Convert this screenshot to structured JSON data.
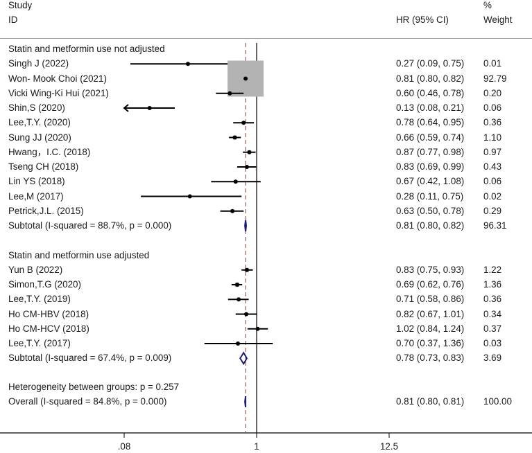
{
  "header": {
    "study_label_line1": "Study",
    "study_label_line2": "ID",
    "hr_label": "HR (95% CI)",
    "weight_label_line1": "%",
    "weight_label_line2": "Weight"
  },
  "colors": {
    "text": "#1a1a1a",
    "ci_line": "#000000",
    "weight_box": "#b3b3b3",
    "diamond": "#1c1c78",
    "null_line": "#000000",
    "overall_dashed_line": "#8b3a3a",
    "header_rule": "#a0a0a0"
  },
  "chart_data": {
    "type": "forest",
    "title": "",
    "xlabel": "",
    "scale": "log",
    "x_ticks": [
      0.08,
      1,
      12.5
    ],
    "x_tick_labels": [
      ".08",
      "1",
      "12.5"
    ],
    "null_value": 1,
    "overall_line_value": 0.81,
    "columns": [
      "Study ID",
      "HR (95% CI)",
      "% Weight"
    ],
    "groups": [
      {
        "name": "Statin and metformin use not adjusted",
        "studies": [
          {
            "study": "Singh J (2022)",
            "hr": 0.27,
            "lo": 0.09,
            "hi": 0.75,
            "ci_text": "0.27 (0.09, 0.75)",
            "weight": "0.01"
          },
          {
            "study": "Won- Mook Choi (2021)",
            "hr": 0.81,
            "lo": 0.8,
            "hi": 0.82,
            "ci_text": "0.81 (0.80, 0.82)",
            "weight": "92.79"
          },
          {
            "study": "Vicki Wing-Ki Hui (2021)",
            "hr": 0.6,
            "lo": 0.46,
            "hi": 0.78,
            "ci_text": "0.60 (0.46, 0.78)",
            "weight": "0.20"
          },
          {
            "study": "Shin,S (2020)",
            "hr": 0.13,
            "lo": 0.08,
            "hi": 0.21,
            "ci_text": "0.13 (0.08, 0.21)",
            "weight": "0.06",
            "arrow_left": true
          },
          {
            "study": "Lee,T.Y. (2020)",
            "hr": 0.78,
            "lo": 0.64,
            "hi": 0.95,
            "ci_text": "0.78 (0.64, 0.95)",
            "weight": "0.36"
          },
          {
            "study": "Sung JJ (2020)",
            "hr": 0.66,
            "lo": 0.59,
            "hi": 0.74,
            "ci_text": "0.66 (0.59, 0.74)",
            "weight": "1.10"
          },
          {
            "study": "Hwang，I.C. (2018)",
            "hr": 0.87,
            "lo": 0.77,
            "hi": 0.98,
            "ci_text": "0.87 (0.77, 0.98)",
            "weight": "0.97"
          },
          {
            "study": "Tseng CH (2018)",
            "hr": 0.83,
            "lo": 0.69,
            "hi": 0.99,
            "ci_text": "0.83 (0.69, 0.99)",
            "weight": "0.43"
          },
          {
            "study": "Lin YS (2018)",
            "hr": 0.67,
            "lo": 0.42,
            "hi": 1.08,
            "ci_text": "0.67 (0.42, 1.08)",
            "weight": "0.06"
          },
          {
            "study": "Lee,M (2017)",
            "hr": 0.28,
            "lo": 0.11,
            "hi": 0.75,
            "ci_text": "0.28 (0.11, 0.75)",
            "weight": "0.02"
          },
          {
            "study": "Petrick,J.L. (2015)",
            "hr": 0.63,
            "lo": 0.5,
            "hi": 0.78,
            "ci_text": "0.63 (0.50, 0.78)",
            "weight": "0.29"
          }
        ],
        "subtotal": {
          "label": "Subtotal  (I-squared = 88.7%, p = 0.000)",
          "hr": 0.81,
          "lo": 0.8,
          "hi": 0.82,
          "ci_text": "0.81 (0.80, 0.82)",
          "weight": "96.31"
        }
      },
      {
        "name": "Statin and metformin use adjusted",
        "studies": [
          {
            "study": "Yun B (2022)",
            "hr": 0.83,
            "lo": 0.75,
            "hi": 0.93,
            "ci_text": "0.83 (0.75, 0.93)",
            "weight": "1.22"
          },
          {
            "study": "Simon,T.G (2020)",
            "hr": 0.69,
            "lo": 0.62,
            "hi": 0.76,
            "ci_text": "0.69 (0.62, 0.76)",
            "weight": "1.36"
          },
          {
            "study": "Lee,T.Y. (2019)",
            "hr": 0.71,
            "lo": 0.58,
            "hi": 0.86,
            "ci_text": "0.71 (0.58, 0.86)",
            "weight": "0.36"
          },
          {
            "study": "Ho CM-HBV (2018)",
            "hr": 0.82,
            "lo": 0.67,
            "hi": 1.01,
            "ci_text": "0.82 (0.67, 1.01)",
            "weight": "0.34"
          },
          {
            "study": "Ho CM-HCV (2018)",
            "hr": 1.02,
            "lo": 0.84,
            "hi": 1.24,
            "ci_text": "1.02 (0.84, 1.24)",
            "weight": "0.37"
          },
          {
            "study": "Lee,T.Y. (2017)",
            "hr": 0.7,
            "lo": 0.37,
            "hi": 1.36,
            "ci_text": "0.70 (0.37, 1.36)",
            "weight": "0.03"
          }
        ],
        "subtotal": {
          "label": "Subtotal  (I-squared = 67.4%, p = 0.009)",
          "hr": 0.78,
          "lo": 0.73,
          "hi": 0.83,
          "ci_text": "0.78 (0.73, 0.83)",
          "weight": "3.69"
        }
      }
    ],
    "heterogeneity": "Heterogeneity between groups: p = 0.257",
    "overall": {
      "label": "Overall  (I-squared = 84.8%, p = 0.000)",
      "hr": 0.81,
      "lo": 0.8,
      "hi": 0.81,
      "ci_text": "0.81 (0.80, 0.81)",
      "weight": "100.00"
    }
  }
}
